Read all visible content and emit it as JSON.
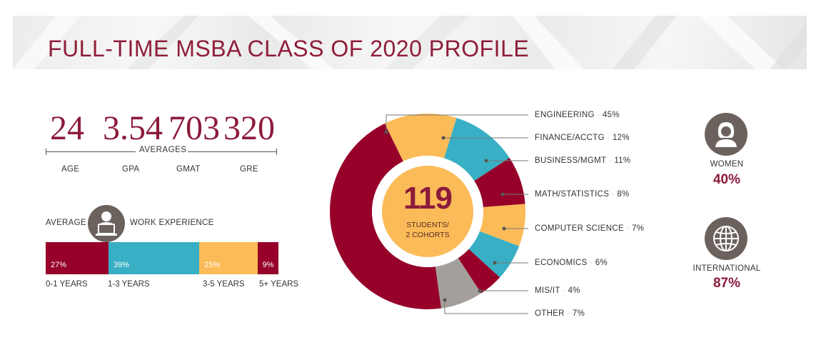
{
  "header": {
    "title": "FULL-TIME MSBA CLASS OF 2020 PROFILE"
  },
  "averages": {
    "caption": "AVERAGES",
    "items": [
      {
        "label": "AGE",
        "value": "24"
      },
      {
        "label": "GPA",
        "value": "3.54"
      },
      {
        "label": "GMAT",
        "value": "703"
      },
      {
        "label": "GRE",
        "value": "320"
      }
    ]
  },
  "work_experience": {
    "prefix": "AVERAGE",
    "suffix": "WORK EXPERIENCE",
    "icon": "laptop-user-icon"
  },
  "colors": {
    "maroon": "#960029",
    "teal": "#38afc4",
    "gold": "#fbbb58",
    "gray": "#a49f9b",
    "text_accent": "#8c1b3b"
  },
  "center": {
    "number": "119",
    "line1": "STUDENTS/",
    "line2": "2 COHORTS"
  },
  "chart_data": [
    {
      "type": "bar",
      "orientation": "horizontal-stacked",
      "categories": [
        "0-1 YEARS",
        "1-3 YEARS",
        "3-5 YEARS",
        "5+ YEARS"
      ],
      "values": [
        27,
        39,
        25,
        9
      ],
      "labels": [
        "27%",
        "39%",
        "25%",
        "9%"
      ],
      "colors": [
        "#960029",
        "#38afc4",
        "#fbbb58",
        "#960029"
      ]
    },
    {
      "type": "pie",
      "variant": "donut",
      "categories": [
        "ENGINEERING",
        "FINANCE/ACCTG",
        "BUSINESS/MGMT",
        "MATH/STATISTICS",
        "COMPUTER SCIENCE",
        "ECONOMICS",
        "MIS/IT",
        "OTHER"
      ],
      "values": [
        45,
        12,
        11,
        8,
        7,
        6,
        4,
        7
      ],
      "labels": [
        "45%",
        "12%",
        "11%",
        "8%",
        "7%",
        "6%",
        "4%",
        "7%"
      ],
      "colors": [
        "#960029",
        "#fbbb58",
        "#38afc4",
        "#960029",
        "#fbbb58",
        "#38afc4",
        "#960029",
        "#a49f9b"
      ]
    }
  ],
  "side_stats": [
    {
      "label": "WOMEN",
      "value": "40%",
      "icon": "woman-icon"
    },
    {
      "label": "INTERNATIONAL",
      "value": "87%",
      "icon": "globe-icon"
    }
  ]
}
